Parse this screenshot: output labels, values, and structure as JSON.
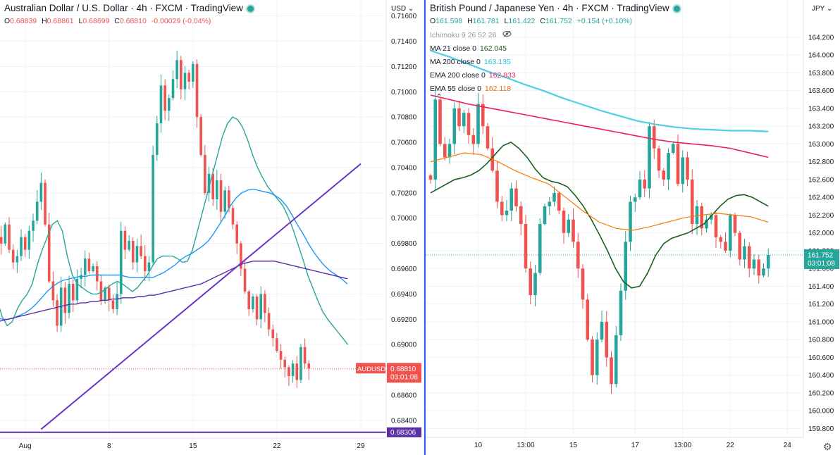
{
  "charts": [
    {
      "id": "left",
      "symbol_title": "Australian Dollar / U.S. Dollar · 4h · FXCM · TradingView",
      "ohlc": {
        "o": "0.68839",
        "h": "0.68861",
        "l": "0.68699",
        "c": "0.68810",
        "chg": "-0.00029 (-0.04%)"
      },
      "currency_unit": "USD",
      "price_label": {
        "symbol": "AUDUSD",
        "price": "0.68810",
        "countdown": "03:01:08"
      },
      "line_label": "0.68306",
      "colors": {
        "up": "#26a69a",
        "down": "#ef5350",
        "ma_teal": "#26a69a",
        "ma_blue": "#2196f3",
        "ma_purple": "#5b2ea6",
        "trendline": "#6a34c6",
        "hline": "#5b2ea6"
      }
    },
    {
      "id": "right",
      "symbol_title": "British Pound / Japanese Yen · 4h · FXCM · TradingView",
      "ohlc": {
        "o": "161.598",
        "h": "161.781",
        "l": "161.422",
        "c": "161.752",
        "chg": "+0.154 (+0.10%)"
      },
      "currency_unit": "JPY",
      "price_label": {
        "price": "161.752",
        "countdown": "03:01:08"
      },
      "indicators": [
        {
          "label": "Ichimoku 9 26 52 26",
          "value": "",
          "color": "#9598a1"
        },
        {
          "label": "MA 21 close 0",
          "value": "162.045",
          "color": "#1b5e20"
        },
        {
          "label": "MA 200 close 0",
          "value": "163.135",
          "color": "#4dd0e1"
        },
        {
          "label": "EMA 200 close 0",
          "value": "162.833",
          "color": "#e91e63"
        },
        {
          "label": "EMA 55 close 0",
          "value": "162.118",
          "color": "#ef6c00"
        }
      ],
      "colors": {
        "up": "#26a69a",
        "down": "#ef5350",
        "ma21": "#1b5e20",
        "ma200": "#4dd0e1",
        "ema200": "#e91e63",
        "ema55": "#f57c00"
      }
    }
  ],
  "chart_data": [
    {
      "type": "candlestick",
      "title": "Australian Dollar / U.S. Dollar · 4h · FXCM · TradingView",
      "ylabel": "USD",
      "ylim": [
        0.6826,
        0.7162
      ],
      "y_ticks": [
        "0.71600",
        "0.71400",
        "0.71200",
        "0.71000",
        "0.70800",
        "0.70600",
        "0.70400",
        "0.70200",
        "0.70000",
        "0.69800",
        "0.69600",
        "0.69400",
        "0.69200",
        "0.69000",
        "0.68800",
        "0.68600",
        "0.68400"
      ],
      "y_tick_values": [
        0.716,
        0.714,
        0.712,
        0.71,
        0.708,
        0.706,
        0.704,
        0.702,
        0.7,
        0.698,
        0.696,
        0.694,
        0.692,
        0.69,
        0.688,
        0.686,
        0.684
      ],
      "x_ticks": [
        "Aug",
        "8",
        "15",
        "22",
        "29"
      ],
      "x_tick_bars": [
        7,
        28,
        49,
        70,
        91
      ],
      "last_price": 0.6881,
      "horizontal_line": 0.68306,
      "trendline": [
        {
          "bar": 11,
          "price": 0.6833
        },
        {
          "bar": 91,
          "price": 0.7043
        }
      ],
      "series": [
        {
          "name": "close",
          "values": [
            0.6985,
            0.698,
            0.6995,
            0.6975,
            0.6965,
            0.697,
            0.6985,
            0.6975,
            0.699,
            0.6998,
            0.7013,
            0.7028,
            0.6995,
            0.695,
            0.6935,
            0.6915,
            0.6945,
            0.6925,
            0.6948,
            0.6935,
            0.6952,
            0.6955,
            0.6968,
            0.6958,
            0.6962,
            0.695,
            0.6935,
            0.6945,
            0.6935,
            0.6928,
            0.694,
            0.699,
            0.6975,
            0.6982,
            0.6965,
            0.6978,
            0.697,
            0.6958,
            0.6965,
            0.705,
            0.7075,
            0.7105,
            0.7085,
            0.7095,
            0.711,
            0.7125,
            0.7102,
            0.7115,
            0.7108,
            0.7122,
            0.708,
            0.705,
            0.702,
            0.7035,
            0.7015,
            0.703,
            0.7005,
            0.7022,
            0.7008,
            0.6995,
            0.698,
            0.696,
            0.6942,
            0.6928,
            0.6938,
            0.692,
            0.694,
            0.6925,
            0.6912,
            0.6905,
            0.6895,
            0.6888,
            0.6882,
            0.6875,
            0.6885,
            0.6872,
            0.6898,
            0.6885,
            0.6881
          ]
        },
        {
          "name": "ma_teal",
          "values": [
            0.6935,
            0.6922,
            0.6915,
            0.6918,
            0.6928,
            0.6935,
            0.694,
            0.6948,
            0.6963,
            0.6975,
            0.6985,
            0.6995,
            0.6998,
            0.699,
            0.697,
            0.6955,
            0.6948,
            0.6945,
            0.6942,
            0.694,
            0.694,
            0.6942,
            0.6945,
            0.6948,
            0.695,
            0.6948,
            0.6945,
            0.6942,
            0.6945,
            0.695,
            0.6955,
            0.6962,
            0.6968,
            0.697,
            0.697,
            0.697,
            0.6968,
            0.6965,
            0.6966,
            0.6975,
            0.699,
            0.7005,
            0.702,
            0.7035,
            0.705,
            0.7065,
            0.7075,
            0.708,
            0.7078,
            0.7072,
            0.7062,
            0.705,
            0.704,
            0.7032,
            0.7025,
            0.702,
            0.7015,
            0.701,
            0.7002,
            0.6992,
            0.698,
            0.6968,
            0.6955,
            0.6945,
            0.6935,
            0.6926,
            0.692,
            0.6915,
            0.691,
            0.6905,
            0.69
          ]
        },
        {
          "name": "ma_blue",
          "values": [
            0.6921,
            0.692,
            0.692,
            0.6921,
            0.6923,
            0.6925,
            0.6928,
            0.6932,
            0.6937,
            0.6942,
            0.6946,
            0.6949,
            0.6951,
            0.6952,
            0.6953,
            0.6954,
            0.6954,
            0.6955,
            0.6955,
            0.6955,
            0.6955,
            0.6955,
            0.6955,
            0.6954,
            0.6953,
            0.6953,
            0.6953,
            0.6953,
            0.6953,
            0.6955,
            0.6957,
            0.696,
            0.6963,
            0.6967,
            0.697,
            0.6972,
            0.6975,
            0.6978,
            0.6982,
            0.6988,
            0.6995,
            0.7002,
            0.701,
            0.7016,
            0.702,
            0.7022,
            0.7023,
            0.7022,
            0.7021,
            0.702,
            0.7018,
            0.7015,
            0.701,
            0.7003,
            0.6995,
            0.6988,
            0.698,
            0.6973,
            0.6967,
            0.6962,
            0.6958,
            0.6955,
            0.6952,
            0.6948
          ]
        },
        {
          "name": "ma_purple",
          "values": [
            0.6918,
            0.6919,
            0.692,
            0.6921,
            0.6922,
            0.6923,
            0.6924,
            0.6925,
            0.6926,
            0.6927,
            0.6928,
            0.6929,
            0.693,
            0.6931,
            0.6932,
            0.6932,
            0.6933,
            0.6933,
            0.6934,
            0.6934,
            0.6935,
            0.6935,
            0.6936,
            0.6936,
            0.6937,
            0.6937,
            0.6937,
            0.6938,
            0.6938,
            0.6939,
            0.6939,
            0.694,
            0.6941,
            0.6942,
            0.6943,
            0.6944,
            0.6945,
            0.6946,
            0.6947,
            0.6948,
            0.695,
            0.6952,
            0.6954,
            0.6956,
            0.6958,
            0.696,
            0.6962,
            0.6964,
            0.6965,
            0.6966,
            0.6966,
            0.6966,
            0.6966,
            0.6966,
            0.6965,
            0.6964,
            0.6963,
            0.6962,
            0.6961,
            0.696,
            0.6959,
            0.6958,
            0.6957,
            0.6956,
            0.6955,
            0.6954,
            0.6953,
            0.6952
          ]
        }
      ]
    },
    {
      "type": "candlestick",
      "title": "British Pound / Japanese Yen · 4h · FXCM · TradingView",
      "ylabel": "JPY",
      "ylim": [
        159.7,
        164.35
      ],
      "y_ticks": [
        "164.200",
        "164.000",
        "163.800",
        "163.600",
        "163.400",
        "163.200",
        "163.000",
        "162.800",
        "162.600",
        "162.400",
        "162.200",
        "162.000",
        "161.800",
        "161.600",
        "161.400",
        "161.200",
        "161.000",
        "160.800",
        "160.600",
        "160.400",
        "160.200",
        "160.000",
        "159.800"
      ],
      "y_tick_values": [
        164.2,
        164.0,
        163.8,
        163.6,
        163.4,
        163.2,
        163.0,
        162.8,
        162.6,
        162.4,
        162.2,
        162.0,
        161.8,
        161.6,
        161.4,
        161.2,
        161.0,
        160.8,
        160.6,
        160.4,
        160.2,
        160.0,
        159.8
      ],
      "x_ticks": [
        "10",
        "13:00",
        "15",
        "17",
        "13:00",
        "22",
        "24"
      ],
      "x_tick_bars": [
        10,
        20,
        30,
        43,
        53,
        63,
        75
      ],
      "last_price": 161.752,
      "series": [
        {
          "name": "close",
          "values": [
            162.6,
            163.5,
            163.0,
            162.85,
            163.0,
            163.4,
            163.2,
            163.35,
            163.1,
            163.0,
            163.45,
            163.2,
            162.95,
            162.7,
            162.35,
            162.2,
            162.25,
            162.5,
            162.3,
            162.1,
            161.6,
            161.3,
            161.55,
            162.1,
            162.3,
            162.35,
            162.45,
            162.25,
            162.0,
            162.15,
            161.9,
            161.6,
            161.25,
            160.8,
            160.4,
            160.8,
            161.0,
            160.6,
            160.3,
            160.85,
            161.35,
            161.9,
            162.35,
            162.4,
            162.6,
            162.5,
            163.2,
            162.95,
            162.7,
            162.6,
            162.9,
            163.0,
            162.55,
            162.85,
            162.6,
            162.1,
            162.3,
            162.05,
            162.15,
            162.2,
            161.95,
            161.9,
            161.8,
            162.2,
            162.0,
            161.7,
            161.85,
            161.6,
            161.7,
            161.52,
            161.6,
            161.752
          ]
        },
        {
          "name": "ma21",
          "values": [
            162.45,
            162.5,
            162.55,
            162.6,
            162.62,
            162.65,
            162.7,
            162.78,
            162.88,
            162.98,
            163.02,
            162.95,
            162.85,
            162.72,
            162.62,
            162.58,
            162.56,
            162.52,
            162.42,
            162.3,
            162.15,
            161.98,
            161.8,
            161.6,
            161.45,
            161.38,
            161.4,
            161.55,
            161.75,
            161.88,
            161.94,
            161.97,
            162.0,
            162.05,
            162.1,
            162.2,
            162.3,
            162.38,
            162.42,
            162.43,
            162.4,
            162.35,
            162.3
          ]
        },
        {
          "name": "ma200",
          "values": [
            164.05,
            163.98,
            163.9,
            163.82,
            163.75,
            163.67,
            163.6,
            163.52,
            163.45,
            163.38,
            163.32,
            163.26,
            163.22,
            163.19,
            163.17,
            163.16,
            163.15,
            163.15,
            163.14
          ]
        },
        {
          "name": "ema200",
          "values": [
            163.55,
            163.5,
            163.45,
            163.41,
            163.37,
            163.33,
            163.29,
            163.25,
            163.21,
            163.17,
            163.13,
            163.09,
            163.05,
            163.02,
            163.0,
            162.98,
            162.95,
            162.9,
            162.85
          ]
        },
        {
          "name": "ema55",
          "values": [
            162.8,
            162.85,
            162.9,
            162.88,
            162.8,
            162.7,
            162.62,
            162.55,
            162.4,
            162.25,
            162.12,
            162.05,
            162.03,
            162.07,
            162.12,
            162.17,
            162.2,
            162.22,
            162.2,
            162.18,
            162.12
          ]
        }
      ]
    }
  ]
}
